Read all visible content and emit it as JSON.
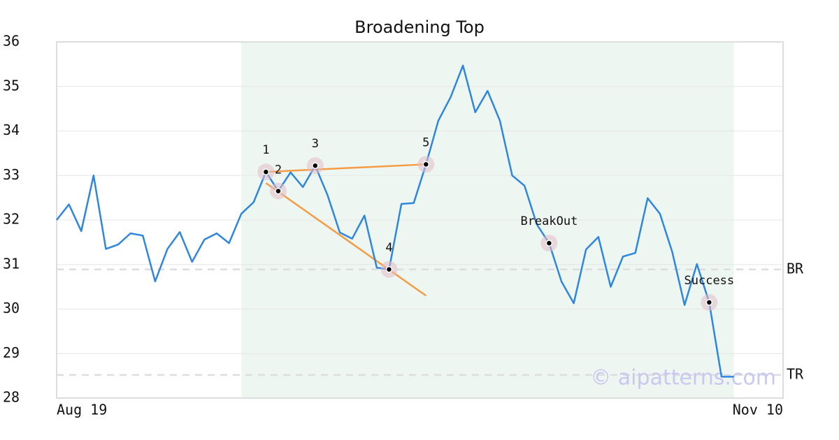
{
  "chart_data": {
    "type": "line",
    "title": "Broadening Top",
    "categories": [
      "Aug 19",
      null,
      null,
      null,
      null,
      null,
      null,
      null,
      null,
      null,
      null,
      null,
      null,
      null,
      null,
      null,
      null,
      null,
      null,
      null,
      null,
      null,
      null,
      null,
      null,
      null,
      null,
      null,
      null,
      null,
      null,
      null,
      null,
      null,
      null,
      null,
      null,
      null,
      null,
      null,
      null,
      null,
      null,
      null,
      null,
      null,
      null,
      null,
      null,
      null,
      null,
      null,
      null,
      null,
      null,
      null,
      null,
      null,
      null,
      "Nov 10"
    ],
    "series": [
      {
        "color": "#2e86de",
        "values": [
          32.0,
          32.35,
          31.75,
          33.0,
          31.35,
          31.45,
          31.7,
          31.65,
          30.62,
          31.35,
          31.73,
          31.06,
          31.56,
          31.7,
          31.48,
          32.14,
          32.4,
          33.08,
          32.65,
          33.07,
          32.74,
          33.22,
          32.56,
          31.72,
          31.58,
          32.1,
          30.93,
          30.89,
          32.36,
          32.38,
          33.25,
          34.23,
          34.76,
          35.47,
          34.42,
          34.9,
          34.23,
          33.0,
          32.77,
          31.9,
          31.48,
          30.62,
          30.13,
          31.34,
          31.62,
          30.5,
          31.18,
          31.26,
          32.49,
          32.14,
          31.28,
          30.09,
          31.01,
          30.15,
          28.48,
          28.48,
          null,
          null,
          null,
          null
        ]
      }
    ],
    "ylim": [
      28,
      36
    ],
    "yticks": [
      28,
      29,
      30,
      31,
      32,
      33,
      34,
      35,
      36
    ],
    "grid": true,
    "highlight": {
      "start": 15,
      "end": 55,
      "color": "#eef6f1"
    },
    "annotations": [
      {
        "text": "1",
        "index": 17
      },
      {
        "text": "2",
        "index": 18
      },
      {
        "text": "3",
        "index": 21
      },
      {
        "text": "4",
        "index": 27
      },
      {
        "text": "5",
        "index": 30
      },
      {
        "text": "BreakOut",
        "index": 40
      },
      {
        "text": "Success",
        "index": 53
      }
    ],
    "trend_lines": [
      {
        "x": [
          17,
          30
        ],
        "y": [
          33.08,
          33.25
        ],
        "color": "#f59c42"
      },
      {
        "x": [
          17,
          30
        ],
        "y": [
          32.83,
          30.3
        ],
        "color": "#f59c42"
      }
    ],
    "reference_lines": [
      {
        "label": "BR",
        "value": 30.89
      },
      {
        "label": "TR",
        "value": 28.52
      }
    ],
    "watermark": "© aipatterns.com"
  }
}
